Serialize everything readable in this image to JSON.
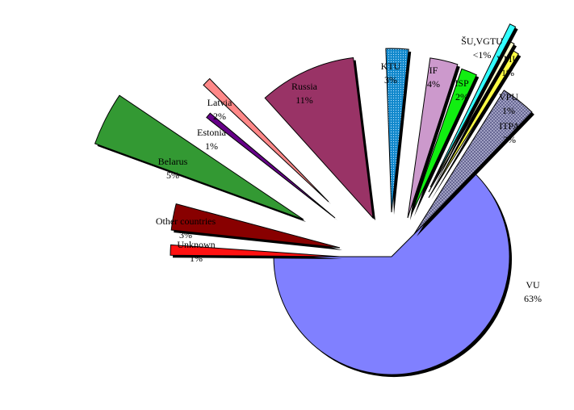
{
  "chart_data": {
    "type": "pie",
    "exploded": true,
    "categories": [
      "VU",
      "ITPA",
      "VPU",
      "VMU",
      "ŠU,VGTU",
      "ISP",
      "IF",
      "KTU",
      "Russia",
      "Latvia",
      "Estonia",
      "Belarus",
      "Other countries",
      "Unknown"
    ],
    "values": [
      63,
      3,
      1,
      1,
      0.5,
      2,
      4,
      3,
      11,
      2,
      1,
      5,
      3,
      1
    ],
    "labels": [
      {
        "name": "VU",
        "pct": "63%"
      },
      {
        "name": "ITPA",
        "pct": "3%"
      },
      {
        "name": "VPU",
        "pct": "1%"
      },
      {
        "name": "VMU",
        "pct": "1%"
      },
      {
        "name": "ŠU,VGTU",
        "pct": "<1%"
      },
      {
        "name": "ISP",
        "pct": "2%"
      },
      {
        "name": "IF",
        "pct": "4%"
      },
      {
        "name": "KTU",
        "pct": "3%"
      },
      {
        "name": "Russia",
        "pct": "11%"
      },
      {
        "name": "Latvia",
        "pct": "2%"
      },
      {
        "name": "Estonia",
        "pct": "1%"
      },
      {
        "name": "Belarus",
        "pct": "5%"
      },
      {
        "name": "Other countries",
        "pct": "3%"
      },
      {
        "name": "Unknown",
        "pct": "1%"
      }
    ],
    "colors": [
      "#8080ff",
      "#9999bb",
      "#ffff44",
      "#ffffcc",
      "#33ffff",
      "#11ee11",
      "#cc99cc",
      "#1188cc",
      "#993366",
      "#ff8888",
      "#660088",
      "#339933",
      "#880000",
      "#ff1111"
    ],
    "patterns": {
      "ITPA": "crosshatch",
      "KTU": "dots"
    },
    "legend": "none",
    "title": ""
  }
}
